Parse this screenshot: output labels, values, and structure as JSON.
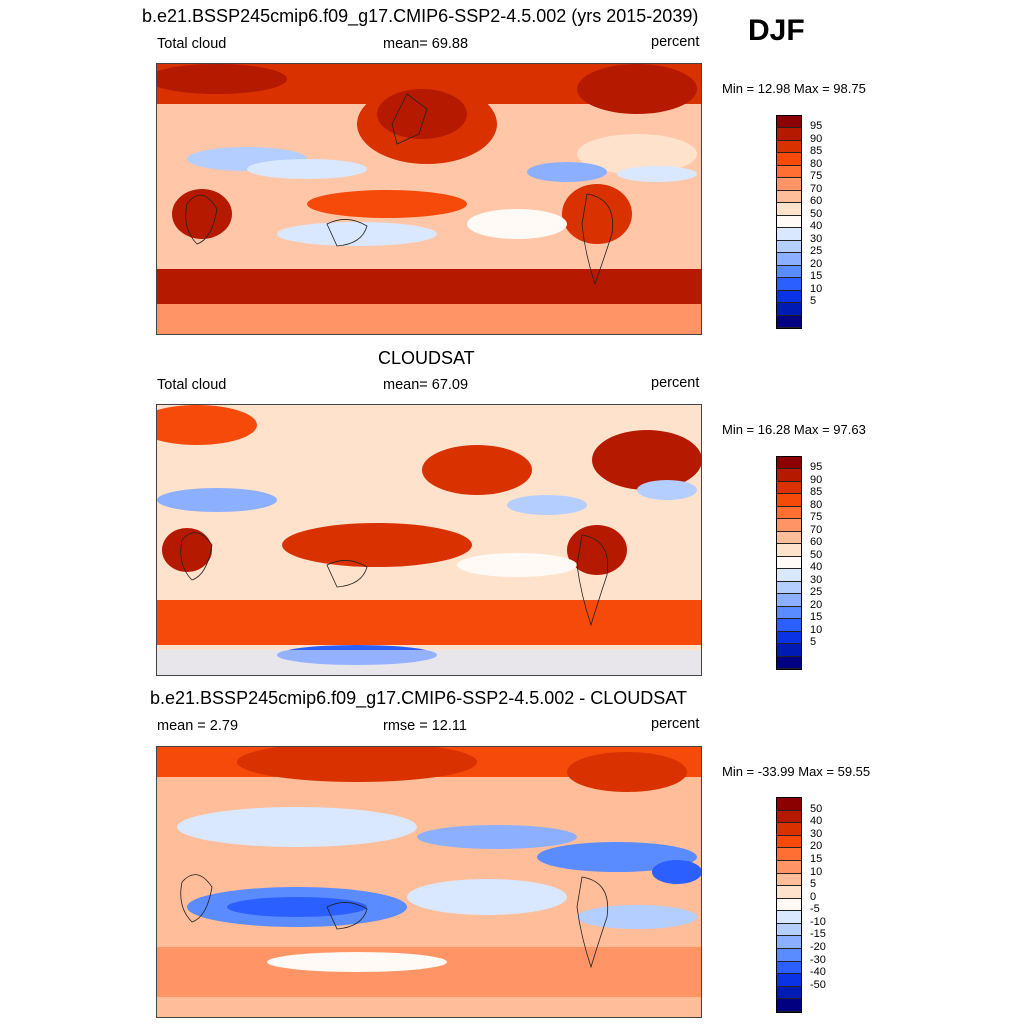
{
  "season": "DJF",
  "panels": [
    {
      "title": "b.e21.BSSP245cmip6.f09_g17.CMIP6-SSP2-4.5.002 (yrs 2015-2039)",
      "left": "Total cloud",
      "center": "mean=  69.88",
      "right": "percent",
      "minmax": "Min =  12.98 Max =  98.75",
      "levels": [
        "95",
        "90",
        "85",
        "80",
        "75",
        "70",
        "60",
        "50",
        "40",
        "30",
        "25",
        "20",
        "15",
        "10",
        "5"
      ],
      "colors": [
        "#8b0000",
        "#b51a00",
        "#d93100",
        "#f54a0a",
        "#ff6e33",
        "#ff9466",
        "#ffbd99",
        "#ffe2cc",
        "#fffaf5",
        "#d9e8ff",
        "#b3ceff",
        "#8cb0ff",
        "#5a8cff",
        "#2c5fff",
        "#0a33e6",
        "#001bb3",
        "#000080"
      ]
    },
    {
      "title": "CLOUDSAT",
      "left": "Total cloud",
      "center": "mean=  67.09",
      "right": "percent",
      "minmax": "Min =  16.28 Max =  97.63",
      "levels": [
        "95",
        "90",
        "85",
        "80",
        "75",
        "70",
        "60",
        "50",
        "40",
        "30",
        "25",
        "20",
        "15",
        "10",
        "5"
      ],
      "colors": [
        "#8b0000",
        "#b51a00",
        "#d93100",
        "#f54a0a",
        "#ff6e33",
        "#ff9466",
        "#ffbd99",
        "#ffe2cc",
        "#fffaf5",
        "#d9e8ff",
        "#b3ceff",
        "#8cb0ff",
        "#5a8cff",
        "#2c5fff",
        "#0a33e6",
        "#001bb3",
        "#000080"
      ]
    },
    {
      "title": "b.e21.BSSP245cmip6.f09_g17.CMIP6-SSP2-4.5.002 - CLOUDSAT",
      "left": "mean =   2.79",
      "center": "rmse =  12.11",
      "right": "percent",
      "minmax": "Min = -33.99 Max =  59.55",
      "levels": [
        "50",
        "40",
        "30",
        "20",
        "15",
        "10",
        "5",
        "0",
        "-5",
        "-10",
        "-15",
        "-20",
        "-30",
        "-40",
        "-50"
      ],
      "colors": [
        "#8b0000",
        "#b51a00",
        "#d93100",
        "#f54a0a",
        "#ff6e33",
        "#ff9466",
        "#ffbd99",
        "#ffe2cc",
        "#fffaf5",
        "#d9e8ff",
        "#b3ceff",
        "#8cb0ff",
        "#5a8cff",
        "#2c5fff",
        "#0a33e6",
        "#001bb3",
        "#000080"
      ]
    }
  ]
}
